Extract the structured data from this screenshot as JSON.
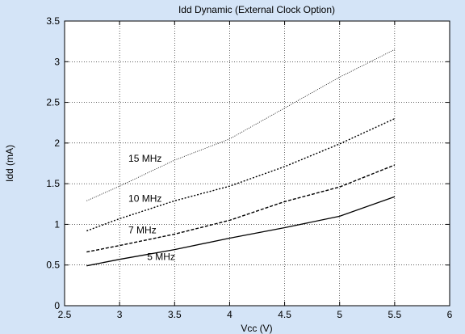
{
  "chart_data": {
    "type": "line",
    "title": "Idd Dynamic (External Clock Option)",
    "xlabel": "Vcc (V)",
    "ylabel": "Idd (mA)",
    "xlim": [
      2.5,
      6
    ],
    "ylim": [
      0,
      3.5
    ],
    "grid": true,
    "legend": "inline labels",
    "x_ticks": [
      "2.5",
      "3",
      "3.5",
      "4",
      "4.5",
      "5",
      "5.5",
      "6"
    ],
    "y_ticks": [
      "0",
      "0.5",
      "1",
      "1.5",
      "2",
      "2.5",
      "3",
      "3.5"
    ],
    "series": [
      {
        "name": "15 MHz",
        "line_style": "dotted-fine",
        "x": [
          2.7,
          3.0,
          3.5,
          4.0,
          4.5,
          5.0,
          5.5
        ],
        "y": [
          1.29,
          1.47,
          1.79,
          2.05,
          2.43,
          2.81,
          3.15
        ]
      },
      {
        "name": "10 MHz",
        "line_style": "dotted",
        "x": [
          2.7,
          3.0,
          3.5,
          4.0,
          4.5,
          5.0,
          5.5
        ],
        "y": [
          0.92,
          1.07,
          1.29,
          1.47,
          1.71,
          1.99,
          2.3
        ]
      },
      {
        "name": "7 MHz",
        "line_style": "dashed",
        "x": [
          2.7,
          3.0,
          3.5,
          4.0,
          4.5,
          5.0,
          5.5
        ],
        "y": [
          0.66,
          0.74,
          0.88,
          1.05,
          1.28,
          1.46,
          1.73
        ]
      },
      {
        "name": "5 MHz",
        "line_style": "solid",
        "x": [
          2.7,
          3.0,
          3.5,
          4.0,
          4.5,
          5.0,
          5.5
        ],
        "y": [
          0.49,
          0.57,
          0.69,
          0.83,
          0.96,
          1.1,
          1.34
        ]
      }
    ],
    "colors": {
      "background": "#d4e4f7",
      "plot_area": "#ffffff",
      "line": "#000000",
      "grid": "#000000"
    }
  }
}
